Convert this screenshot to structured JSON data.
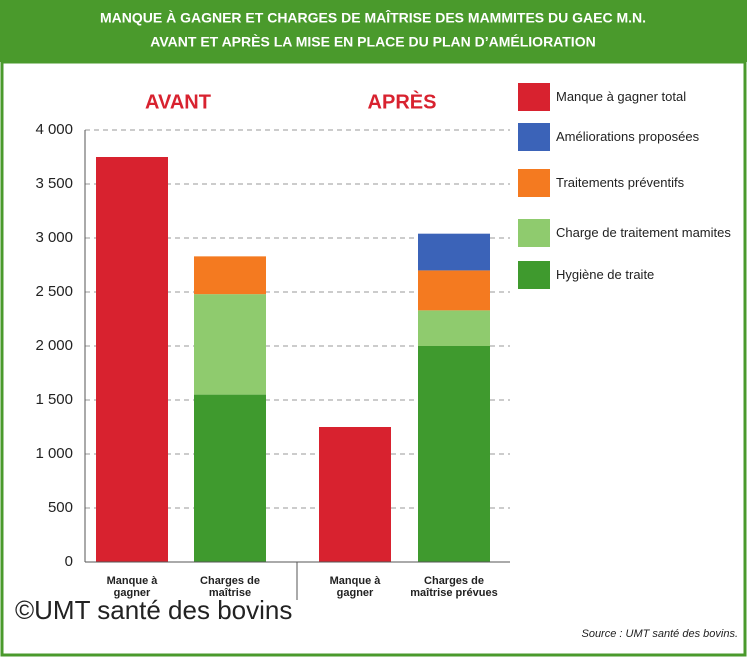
{
  "chart_data": {
    "type": "stacked_bar",
    "title": "MANQUE À GAGNER ET CHARGES DE MAÎTRISE DES MAMMITES DU GAEC M.N.",
    "subtitle": "AVANT ET APRÈS LA MISE EN PLACE DU PLAN D’AMÉLIORATION",
    "groups": [
      "AVANT",
      "APRÈS"
    ],
    "categories": [
      "Manque à gagner",
      "Charges de maîtrise",
      "Manque à gagner",
      "Charges de maîtrise prévues"
    ],
    "series": [
      {
        "name": "Hygiène de traite",
        "color": "#3f9a2e",
        "values": [
          null,
          1550,
          null,
          2000
        ]
      },
      {
        "name": "Charge de traitement mamites",
        "color": "#8fcb6e",
        "values": [
          null,
          930,
          null,
          330
        ]
      },
      {
        "name": "Traitements préventifs",
        "color": "#f47a20",
        "values": [
          null,
          350,
          null,
          370
        ]
      },
      {
        "name": "Améliorations proposées",
        "color": "#3b63b8",
        "values": [
          null,
          null,
          null,
          340
        ]
      },
      {
        "name": "Manque à gagner total",
        "color": "#d8222f",
        "values": [
          3750,
          null,
          1250,
          null
        ]
      }
    ],
    "ylim": [
      0,
      4000
    ],
    "yticks": [
      0,
      500,
      {
        "value": 1000,
        "label": "1 000"
      },
      {
        "value": 1500,
        "label": "1 500"
      },
      {
        "value": 2000,
        "label": "2 000"
      },
      {
        "value": 2500,
        "label": "2 500"
      },
      {
        "value": 3000,
        "label": "3 000"
      },
      {
        "value": 3500,
        "label": "3 500"
      },
      {
        "value": 4000,
        "label": "4 000"
      }
    ],
    "grid": true,
    "source": "Source : UMT santé des bovins.",
    "watermark": "©UMT santé des bovins"
  }
}
